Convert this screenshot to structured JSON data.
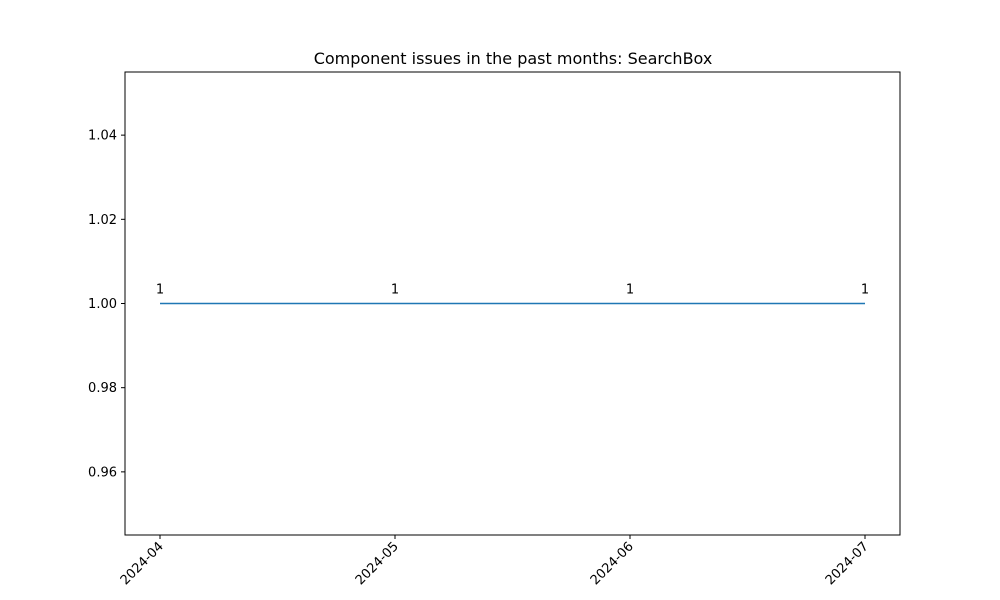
{
  "chart_data": {
    "type": "line",
    "title": "Component issues in the past months: SearchBox",
    "xlabel": "",
    "ylabel": "",
    "x": [
      "2024-04",
      "2024-05",
      "2024-06",
      "2024-07"
    ],
    "series": [
      {
        "values": [
          1,
          1,
          1,
          1
        ],
        "color": "#1f77b4"
      }
    ],
    "data_labels": [
      "1",
      "1",
      "1",
      "1"
    ],
    "ylim": [
      0.945,
      1.055
    ],
    "yticks": [
      0.96,
      0.98,
      1.0,
      1.02,
      1.04
    ],
    "ytick_labels": [
      "0.96",
      "0.98",
      "1.00",
      "1.02",
      "1.04"
    ],
    "xtick_labels": [
      "2024-04",
      "2024-05",
      "2024-06",
      "2024-07"
    ],
    "xtick_rotation": 45,
    "grid": false,
    "legend": "none"
  }
}
